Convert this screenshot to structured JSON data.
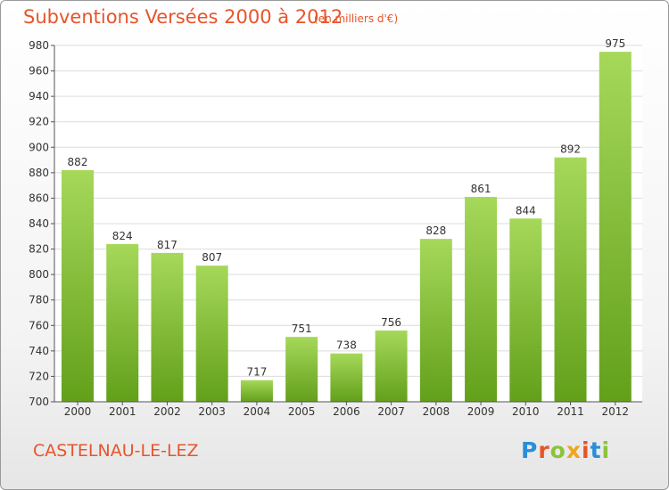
{
  "header": {
    "title": "Subventions Versées 2000 à 2012",
    "unit": "(en milliers d'€)"
  },
  "footer": {
    "commune": "CASTELNAU-LE-LEZ",
    "logo": "Proxiti"
  },
  "colors": {
    "title": "#e8542a",
    "bar_light": "#a6d85a",
    "bar_dark": "#62a01a",
    "logo_letters": [
      "#2a8ed8",
      "#e8542a",
      "#8bc43a",
      "#f2a51a",
      "#e8542a",
      "#2a8ed8",
      "#8bc43a"
    ]
  },
  "chart_data": {
    "type": "bar",
    "categories": [
      "2000",
      "2001",
      "2002",
      "2003",
      "2004",
      "2005",
      "2006",
      "2007",
      "2008",
      "2009",
      "2010",
      "2011",
      "2012"
    ],
    "values": [
      882,
      824,
      817,
      807,
      717,
      751,
      738,
      756,
      828,
      861,
      844,
      892,
      975
    ],
    "title": "Subventions Versées 2000 à 2012",
    "xlabel": "",
    "ylabel": "",
    "ylim": [
      700,
      980
    ],
    "yticks": [
      700,
      720,
      740,
      760,
      780,
      800,
      820,
      840,
      860,
      880,
      900,
      920,
      940,
      960,
      980
    ],
    "grid": true,
    "data_labels": true
  }
}
